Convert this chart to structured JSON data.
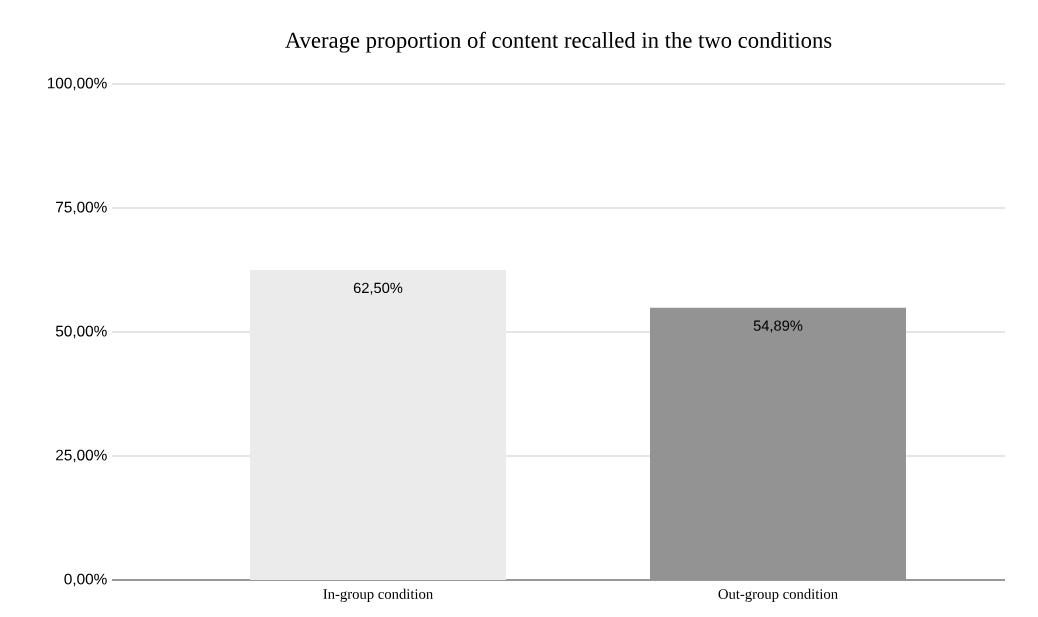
{
  "chart_data": {
    "type": "bar",
    "title": "Average proportion of content recalled in the two conditions",
    "categories": [
      "In-group condition",
      "Out-group condition"
    ],
    "values": [
      62.5,
      54.89
    ],
    "colors": [
      "#ebebeb",
      "#939393"
    ],
    "value_labels": [
      "62,50%",
      "54,89%"
    ],
    "ylim": [
      0,
      100
    ],
    "yticks": [
      {
        "value": 0,
        "label": "0,00%"
      },
      {
        "value": 25,
        "label": "25,00%"
      },
      {
        "value": 50,
        "label": "50,00%"
      },
      {
        "value": 75,
        "label": "75,00%"
      },
      {
        "value": 100,
        "label": "100,00%"
      }
    ],
    "grid": "y"
  }
}
